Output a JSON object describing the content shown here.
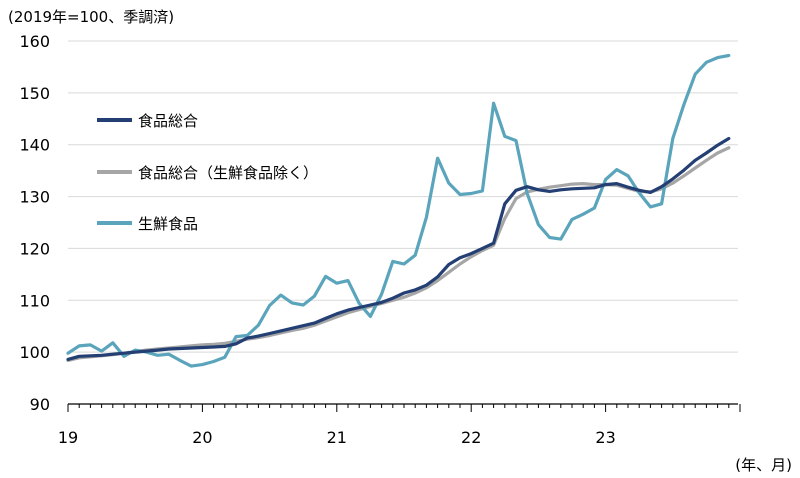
{
  "chart_data": {
    "type": "line",
    "unit_label": "(2019年=100、季調済)",
    "x_unit_label": "(年、月)",
    "ylim": [
      90,
      160
    ],
    "yticks": [
      90,
      100,
      110,
      120,
      130,
      140,
      150,
      160
    ],
    "x_start": "2019-01",
    "x_tick_labels": [
      "19",
      "20",
      "21",
      "22",
      "23"
    ],
    "grid": "horizontal",
    "legend_position": "upper-left",
    "series": [
      {
        "name": "食品総合",
        "color": "#243f73",
        "values": [
          98.6,
          99.2,
          99.3,
          99.4,
          99.6,
          99.8,
          100.0,
          100.2,
          100.4,
          100.6,
          100.7,
          100.8,
          100.9,
          101.0,
          101.1,
          101.6,
          102.7,
          103.1,
          103.6,
          104.1,
          104.6,
          105.1,
          105.6,
          106.5,
          107.4,
          108.1,
          108.6,
          109.1,
          109.6,
          110.4,
          111.4,
          112.0,
          112.9,
          114.5,
          116.9,
          118.2,
          119.0,
          120.0,
          121.0,
          128.6,
          131.2,
          131.9,
          131.3,
          131.0,
          131.3,
          131.5,
          131.6,
          131.7,
          132.3,
          132.5,
          131.8,
          131.2,
          130.8,
          131.9,
          133.4,
          135.1,
          137.0,
          138.4,
          139.9,
          141.2
        ]
      },
      {
        "name": "食品総合（生鮮食品除く）",
        "color": "#a6a6a6",
        "values": [
          98.4,
          98.9,
          99.1,
          99.3,
          99.5,
          99.8,
          100.1,
          100.4,
          100.6,
          100.8,
          101.0,
          101.2,
          101.4,
          101.5,
          101.7,
          102.1,
          102.5,
          102.8,
          103.2,
          103.7,
          104.2,
          104.6,
          105.2,
          106.0,
          106.8,
          107.6,
          108.2,
          108.8,
          109.4,
          110.0,
          110.6,
          111.4,
          112.4,
          113.8,
          115.4,
          117.0,
          118.4,
          119.6,
          120.6,
          125.8,
          129.6,
          130.9,
          131.4,
          131.8,
          132.1,
          132.4,
          132.5,
          132.3,
          132.3,
          132.2,
          131.6,
          131.0,
          130.9,
          131.5,
          132.6,
          134.0,
          135.5,
          137.0,
          138.4,
          139.4
        ]
      },
      {
        "name": "生鮮食品",
        "color": "#5aa4bc",
        "values": [
          99.8,
          101.2,
          101.4,
          100.2,
          101.8,
          99.2,
          100.4,
          100.0,
          99.4,
          99.6,
          98.4,
          97.3,
          97.6,
          98.2,
          99.0,
          103.0,
          103.2,
          105.2,
          109.0,
          111.0,
          109.5,
          109.1,
          110.8,
          114.6,
          113.3,
          113.8,
          109.4,
          106.9,
          111.2,
          117.5,
          117.0,
          118.7,
          126.0,
          137.4,
          132.6,
          130.4,
          130.6,
          131.1,
          148.0,
          141.6,
          140.8,
          130.6,
          124.6,
          122.1,
          121.8,
          125.6,
          126.6,
          127.8,
          133.3,
          135.2,
          134.0,
          130.7,
          128.0,
          128.6,
          141.2,
          147.8,
          153.6,
          155.9,
          156.8,
          157.2
        ]
      }
    ]
  }
}
